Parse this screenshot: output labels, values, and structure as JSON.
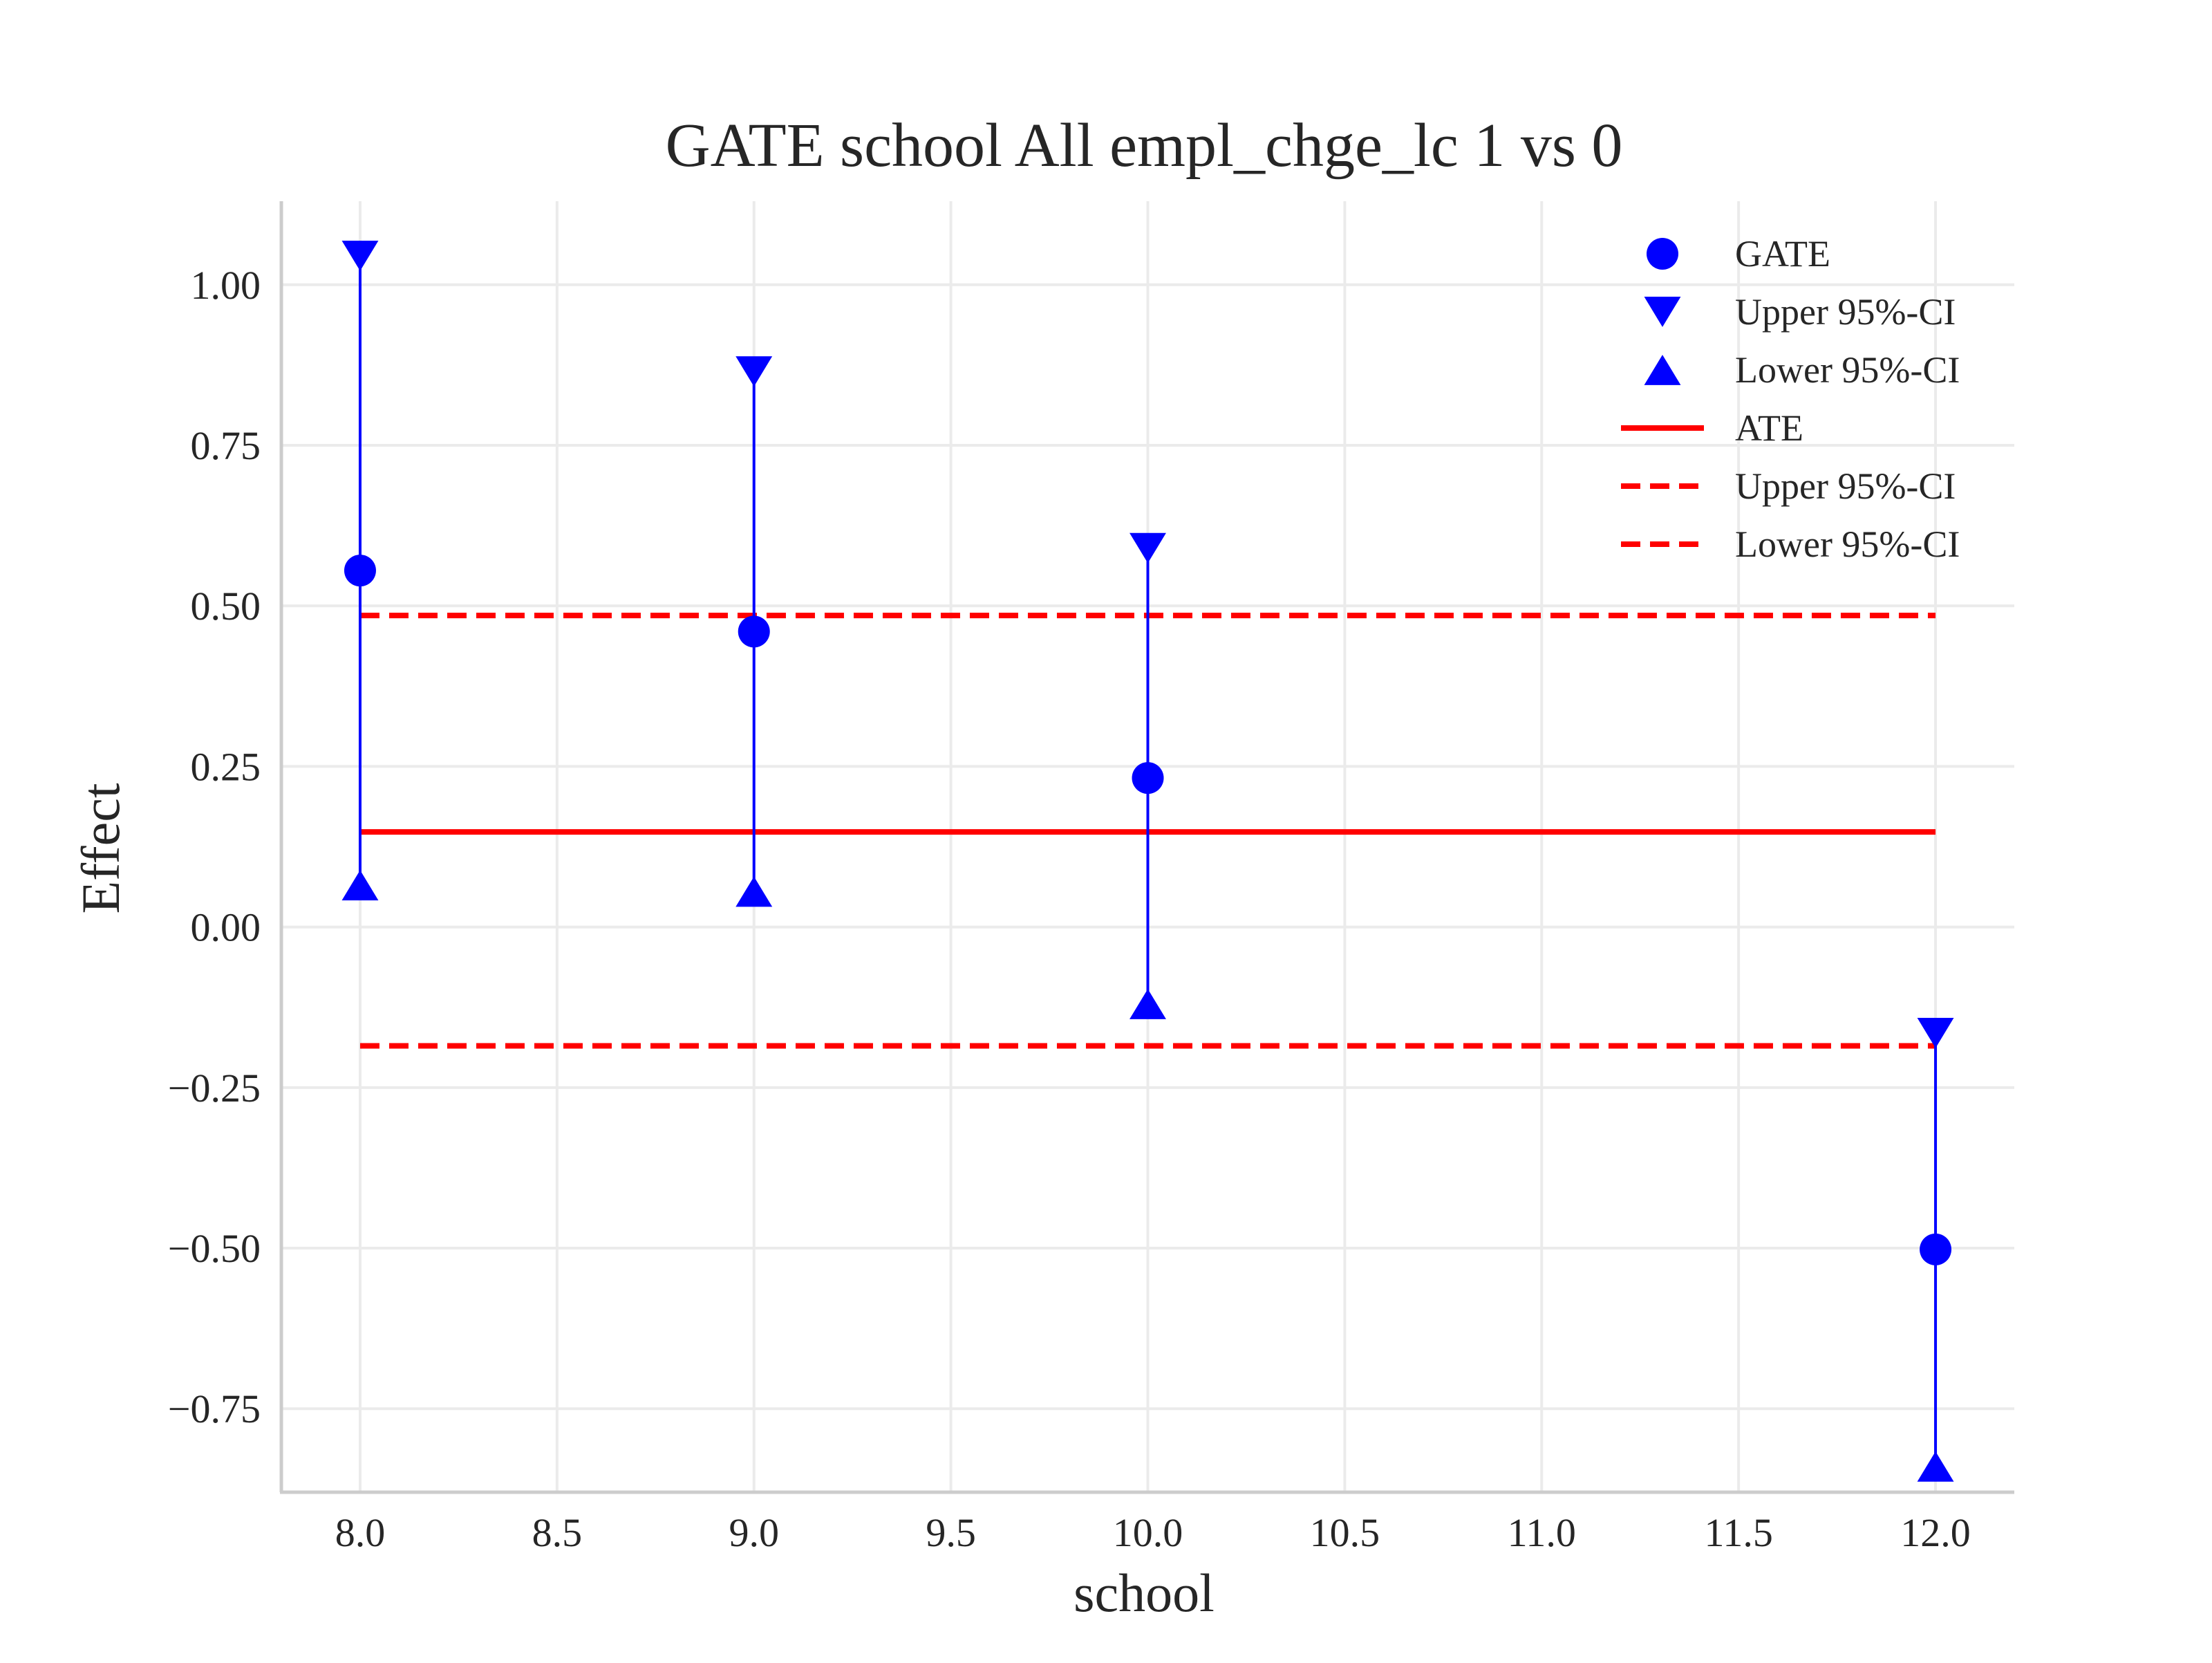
{
  "chart_data": {
    "type": "scatter",
    "title": "GATE school All empl_chge_lc  1 vs 0",
    "xlabel": "school",
    "ylabel": "Effect",
    "xlim": [
      7.8,
      12.2
    ],
    "ylim": [
      -0.88,
      1.13
    ],
    "xticks": [
      8.0,
      8.5,
      9.0,
      9.5,
      10.0,
      10.5,
      11.0,
      11.5,
      12.0
    ],
    "xtick_labels": [
      "8.0",
      "8.5",
      "9.0",
      "9.5",
      "10.0",
      "10.5",
      "11.0",
      "11.5",
      "12.0"
    ],
    "yticks": [
      1.0,
      0.75,
      0.5,
      0.25,
      0.0,
      -0.25,
      -0.5,
      -0.75
    ],
    "ytick_labels": [
      "1.00",
      "0.75",
      "0.50",
      "0.25",
      "0.00",
      "−0.25",
      "−0.50",
      "−0.75"
    ],
    "grid": true,
    "legend_position": "top-right",
    "x": [
      8.0,
      9.0,
      10.0,
      12.0
    ],
    "series": [
      {
        "name": "GATE",
        "marker": "circle",
        "color": "#0000ff",
        "values": [
          0.555,
          0.46,
          0.232,
          -0.502
        ]
      },
      {
        "name": "Upper 95%-CI",
        "marker": "triangle-down",
        "color": "#0000ff",
        "values": [
          1.045,
          0.865,
          0.59,
          -0.165
        ]
      },
      {
        "name": "Lower 95%-CI",
        "marker": "triangle-up",
        "color": "#0000ff",
        "values": [
          0.065,
          0.055,
          -0.12,
          -0.84
        ]
      }
    ],
    "reference_lines": [
      {
        "name": "ATE",
        "style": "solid",
        "color": "#ff0000",
        "value": 0.148,
        "x_range": [
          8.0,
          12.0
        ]
      },
      {
        "name": "Upper 95%-CI",
        "style": "dashed",
        "color": "#ff0000",
        "value": 0.485,
        "x_range": [
          8.0,
          12.0
        ]
      },
      {
        "name": "Lower 95%-CI",
        "style": "dashed",
        "color": "#ff0000",
        "value": -0.185,
        "x_range": [
          8.0,
          12.0
        ]
      }
    ]
  }
}
